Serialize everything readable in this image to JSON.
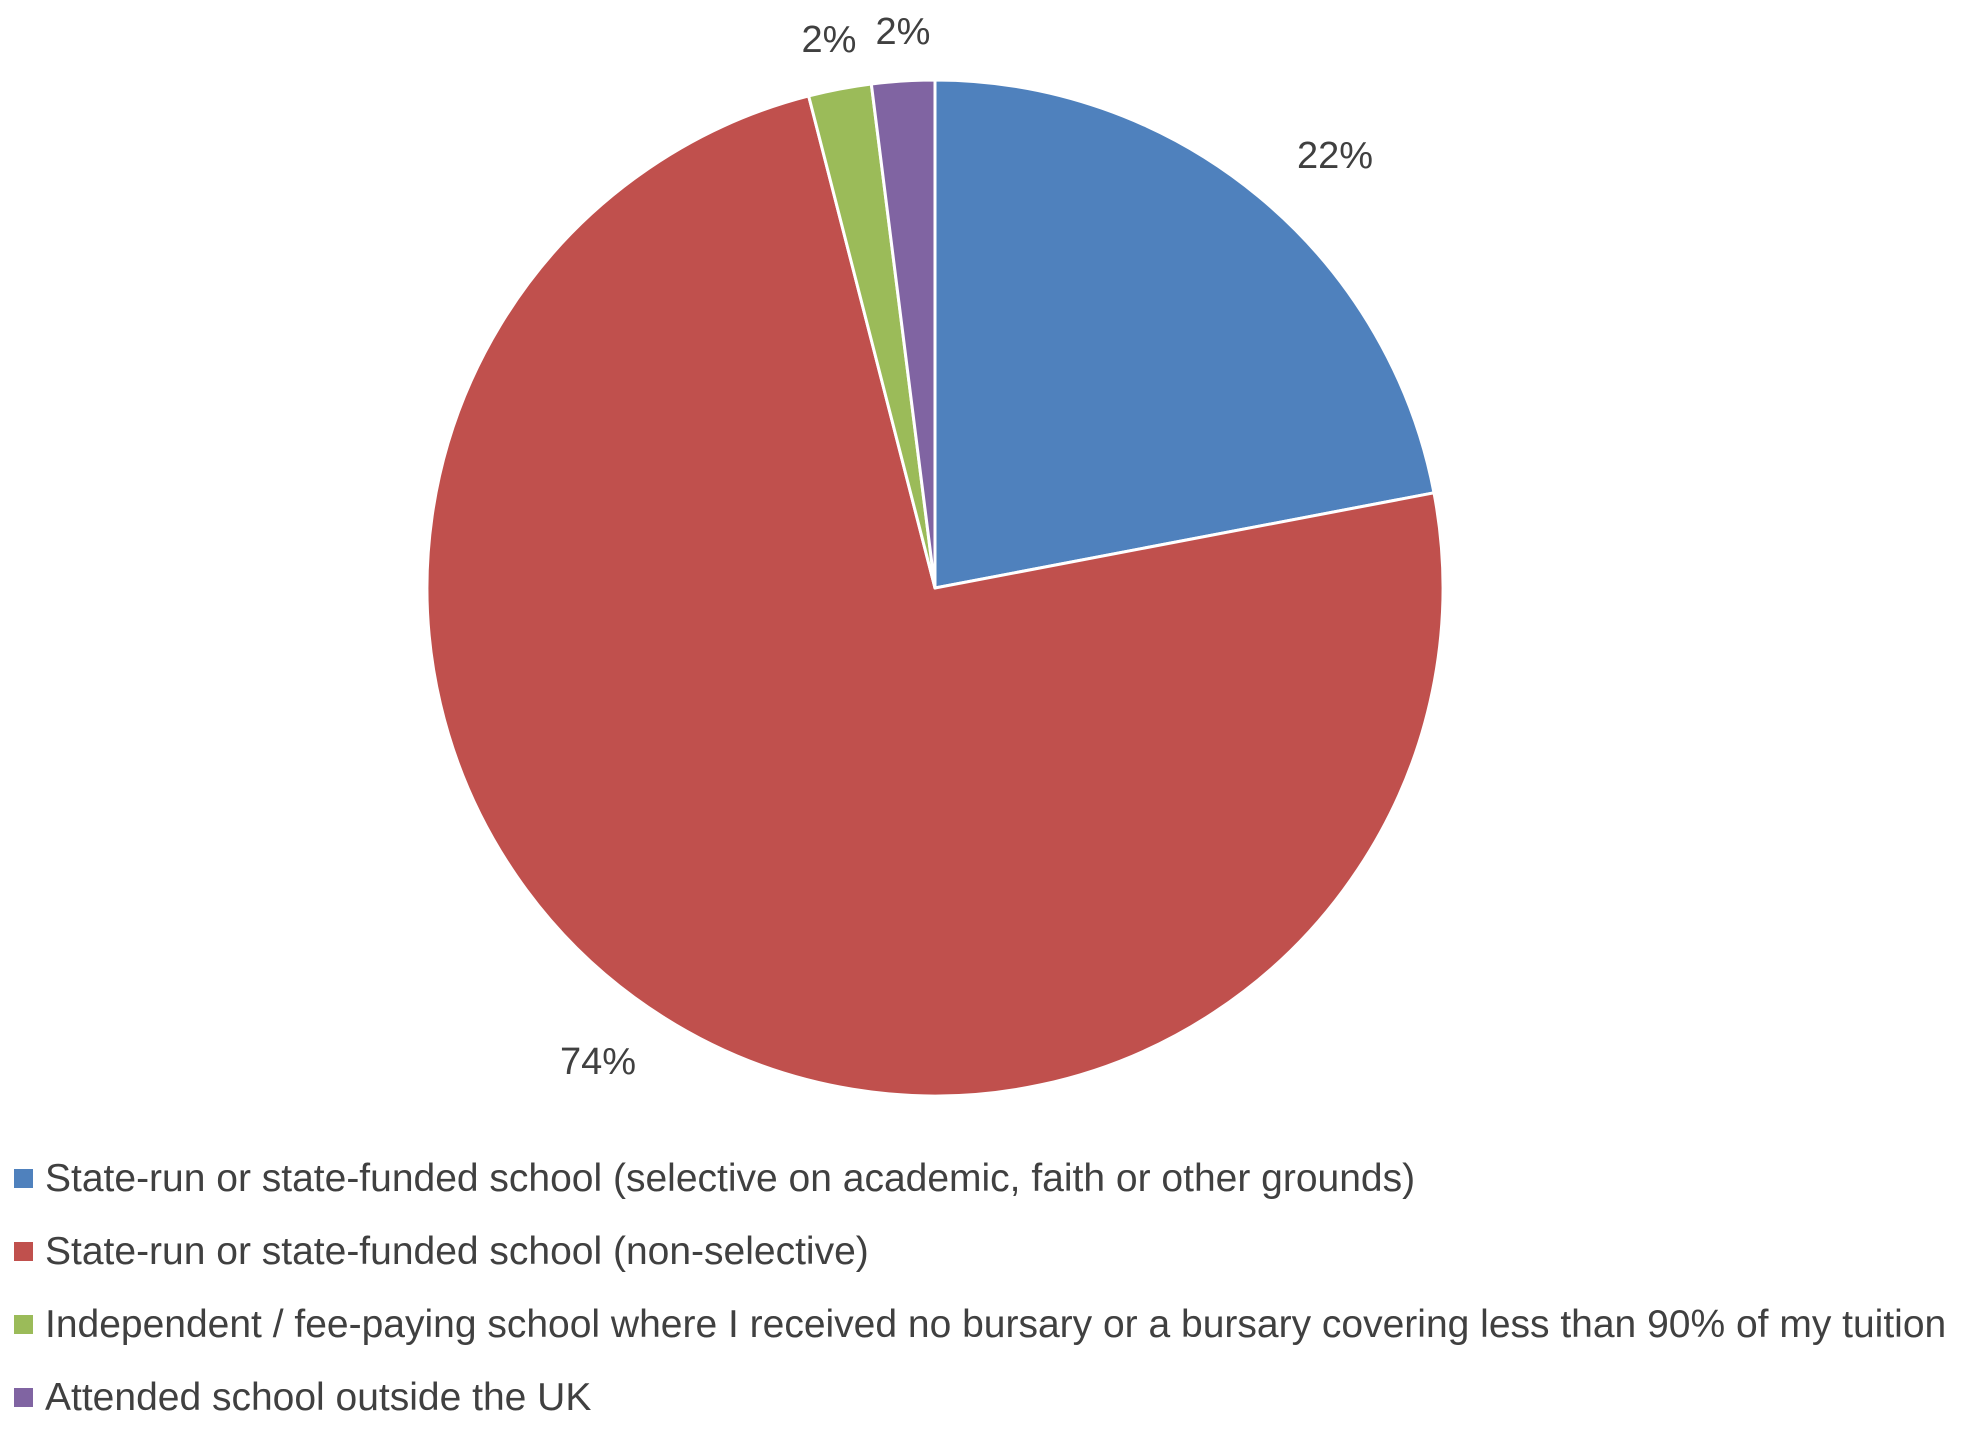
{
  "chart_data": {
    "type": "pie",
    "title": "",
    "slices": [
      {
        "name": "State-run or state-funded school (selective on academic, faith or other grounds)",
        "value": 22,
        "label": "22%",
        "color": "#4F81BD"
      },
      {
        "name": "State-run or state-funded school (non-selective)",
        "value": 74,
        "label": "74%",
        "color": "#C0504D"
      },
      {
        "name": "Independent / fee-paying school where I received no bursary or a bursary covering less than 90% of my tuition",
        "value": 2,
        "label": "2%",
        "color": "#9BBB59"
      },
      {
        "name": "Attended school outside the UK",
        "value": 2,
        "label": "2%",
        "color": "#8064A2"
      }
    ],
    "legend_position": "bottom",
    "start_angle": "12 o'clock",
    "direction": "clockwise"
  }
}
